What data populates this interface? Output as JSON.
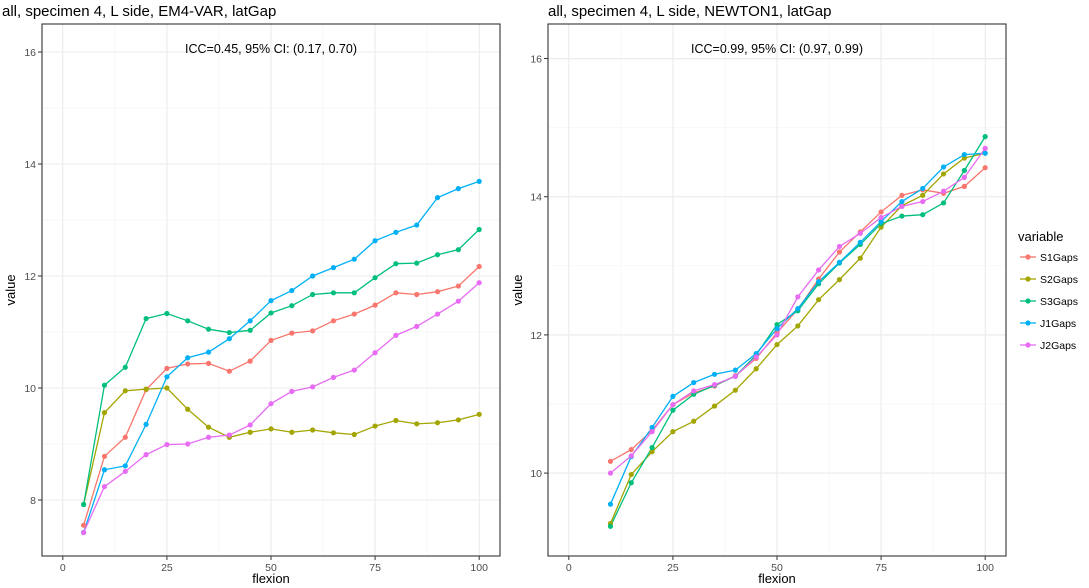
{
  "colors": {
    "S1Gaps": "#F8766D",
    "S2Gaps": "#A3A500",
    "S3Gaps": "#00BF7D",
    "J1Gaps": "#00B0F6",
    "J2Gaps": "#E76BF3",
    "panel_border": "#333333",
    "grid_major": "#EBEBEB",
    "grid_minor": "#F5F5F5",
    "tick_text": "#4D4D4D"
  },
  "legend": {
    "title": "variable",
    "position": "right",
    "entries": [
      "S1Gaps",
      "S2Gaps",
      "S3Gaps",
      "J1Gaps",
      "J2Gaps"
    ]
  },
  "chart_data": [
    {
      "type": "line",
      "markers": true,
      "title": "all, specimen 4, L side, EM4-VAR, latGap",
      "annotation": "ICC=0.45, 95% CI: (0.17, 0.70)",
      "xlabel": "flexion",
      "ylabel": "value",
      "xlim": [
        -5,
        105
      ],
      "ylim": [
        7,
        16.5
      ],
      "xticks": [
        0,
        25,
        50,
        75,
        100
      ],
      "yticks": [
        8,
        10,
        12,
        14,
        16
      ],
      "grid": true,
      "x": [
        5,
        10,
        15,
        20,
        25,
        30,
        35,
        40,
        45,
        50,
        55,
        60,
        65,
        70,
        75,
        80,
        85,
        90,
        95,
        100
      ],
      "series": [
        {
          "name": "S1Gaps",
          "values": [
            7.55,
            8.78,
            9.12,
            9.97,
            10.35,
            10.43,
            10.44,
            10.3,
            10.48,
            10.85,
            10.98,
            11.02,
            11.2,
            11.32,
            11.48,
            11.7,
            11.67,
            11.72,
            11.82,
            12.17
          ]
        },
        {
          "name": "S2Gaps",
          "values": [
            7.92,
            9.56,
            9.95,
            9.98,
            10.0,
            9.62,
            9.3,
            9.12,
            9.21,
            9.27,
            9.21,
            9.25,
            9.2,
            9.17,
            9.32,
            9.42,
            9.36,
            9.38,
            9.43,
            9.53
          ]
        },
        {
          "name": "S3Gaps",
          "values": [
            7.92,
            10.05,
            10.37,
            11.24,
            11.33,
            11.2,
            11.05,
            10.99,
            11.03,
            11.34,
            11.47,
            11.67,
            11.7,
            11.7,
            11.97,
            12.22,
            12.23,
            12.38,
            12.47,
            12.83
          ]
        },
        {
          "name": "J1Gaps",
          "values": [
            7.42,
            8.54,
            8.61,
            9.35,
            10.2,
            10.54,
            10.64,
            10.88,
            11.2,
            11.56,
            11.74,
            12.0,
            12.15,
            12.3,
            12.63,
            12.78,
            12.91,
            13.4,
            13.56,
            13.69
          ]
        },
        {
          "name": "J2Gaps",
          "values": [
            7.42,
            8.24,
            8.51,
            8.81,
            8.99,
            9.0,
            9.12,
            9.16,
            9.34,
            9.72,
            9.94,
            10.02,
            10.19,
            10.32,
            10.63,
            10.94,
            11.1,
            11.32,
            11.55,
            11.88
          ]
        }
      ]
    },
    {
      "type": "line",
      "markers": true,
      "title": "all, specimen 4, L side, NEWTON1, latGap",
      "annotation": "ICC=0.99, 95% CI: (0.97, 0.99)",
      "xlabel": "flexion",
      "ylabel": "value",
      "xlim": [
        -5,
        105
      ],
      "ylim": [
        8.8,
        16.5
      ],
      "xticks": [
        0,
        25,
        50,
        75,
        100
      ],
      "yticks": [
        10,
        12,
        14,
        16
      ],
      "grid": true,
      "x": [
        10,
        15,
        20,
        25,
        30,
        35,
        40,
        45,
        50,
        55,
        60,
        65,
        70,
        75,
        80,
        85,
        90,
        95,
        100
      ],
      "series": [
        {
          "name": "S1Gaps",
          "values": [
            10.17,
            10.34,
            10.62,
            10.99,
            11.16,
            11.26,
            11.41,
            11.66,
            12.03,
            12.37,
            12.81,
            13.2,
            13.49,
            13.78,
            14.02,
            14.1,
            14.05,
            14.15,
            14.42
          ]
        },
        {
          "name": "S2Gaps",
          "values": [
            9.27,
            9.98,
            10.31,
            10.6,
            10.75,
            10.97,
            11.2,
            11.51,
            11.86,
            12.13,
            12.51,
            12.8,
            13.11,
            13.56,
            13.87,
            14.02,
            14.33,
            14.56,
            14.63
          ]
        },
        {
          "name": "S3Gaps",
          "values": [
            9.23,
            9.86,
            10.37,
            10.91,
            11.14,
            11.27,
            11.4,
            11.71,
            12.15,
            12.35,
            12.74,
            13.04,
            13.31,
            13.61,
            13.72,
            13.74,
            13.91,
            14.38,
            14.87
          ]
        },
        {
          "name": "J1Gaps",
          "values": [
            9.55,
            10.24,
            10.66,
            11.11,
            11.31,
            11.43,
            11.49,
            11.73,
            12.09,
            12.38,
            12.77,
            13.05,
            13.34,
            13.64,
            13.93,
            14.12,
            14.43,
            14.61,
            14.63
          ]
        },
        {
          "name": "J2Gaps",
          "values": [
            10.0,
            10.25,
            10.6,
            10.99,
            11.19,
            11.28,
            11.4,
            11.68,
            12.0,
            12.55,
            12.94,
            13.28,
            13.47,
            13.7,
            13.86,
            13.93,
            14.08,
            14.28,
            14.7
          ]
        }
      ]
    }
  ]
}
